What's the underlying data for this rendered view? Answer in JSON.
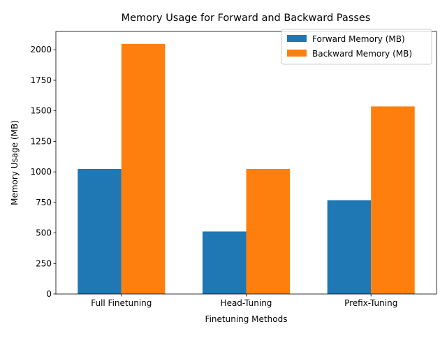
{
  "chart_data": {
    "type": "bar",
    "title": "Memory Usage for Forward and Backward Passes",
    "xlabel": "Finetuning Methods",
    "ylabel": "Memory Usage (MB)",
    "categories": [
      "Full Finetuning",
      "Head-Tuning",
      "Prefix-Tuning"
    ],
    "series": [
      {
        "name": "Forward Memory (MB)",
        "values": [
          1024,
          512,
          768
        ],
        "color": "#1f77b4"
      },
      {
        "name": "Backward Memory (MB)",
        "values": [
          2048,
          1024,
          1536
        ],
        "color": "#ff7f0e"
      }
    ],
    "ylim": [
      0,
      2150
    ],
    "yticks": [
      0,
      250,
      500,
      750,
      1000,
      1250,
      1500,
      1750,
      2000
    ],
    "grid": false,
    "legend_position": "top-right"
  }
}
